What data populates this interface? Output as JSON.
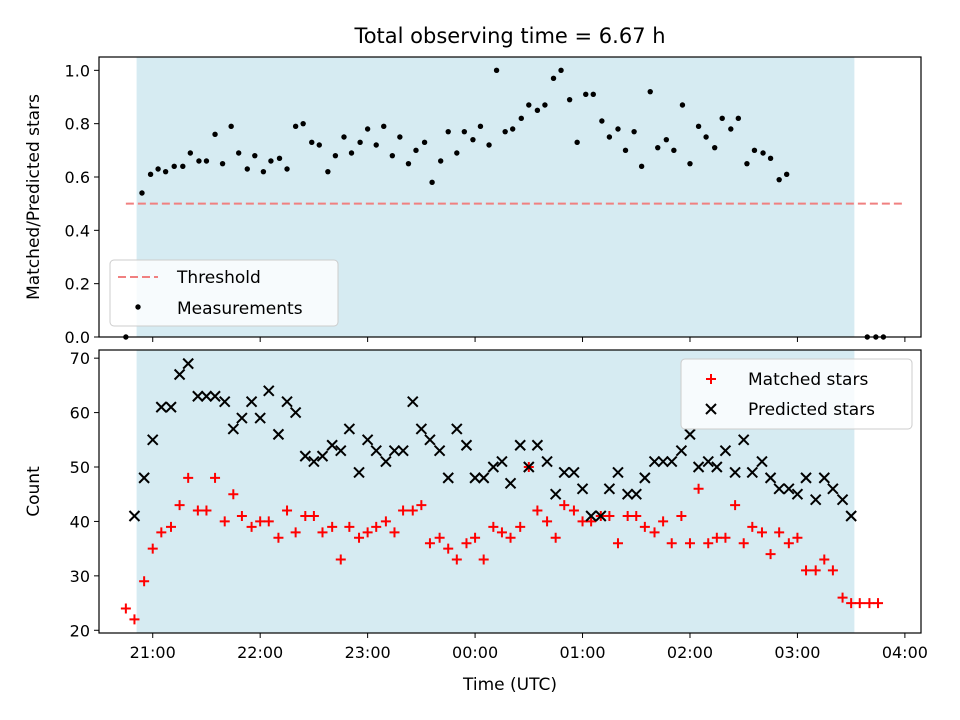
{
  "figure": {
    "title": "Total observing time = 6.67 h",
    "xlabel": "Time (UTC)",
    "xticks": [
      "21:00",
      "22:00",
      "23:00",
      "00:00",
      "01:00",
      "02:00",
      "03:00",
      "04:00"
    ],
    "xtick_hours": [
      21,
      22,
      23,
      24,
      25,
      26,
      27,
      28
    ],
    "x_range_hours": [
      20.5,
      28.15
    ],
    "shade_range_hours": [
      20.85,
      27.53
    ]
  },
  "chart_data": [
    {
      "type": "scatter",
      "ylabel": "Matched/Predicted stars",
      "ylim": [
        0,
        1.05
      ],
      "yticks": [
        0.0,
        0.2,
        0.4,
        0.6,
        0.8,
        1.0
      ],
      "ytick_labels": [
        "0.0",
        "0.2",
        "0.4",
        "0.6",
        "0.8",
        "1.0"
      ],
      "legend": {
        "position": "lower-left",
        "entries": [
          "Threshold",
          "Measurements"
        ]
      },
      "threshold": {
        "name": "Threshold",
        "value": 0.5,
        "x": [
          20.75,
          28.0
        ],
        "color": "#f08080"
      },
      "series": [
        {
          "name": "Measurements",
          "color": "#000000",
          "points": [
            [
              20.75,
              0.0
            ],
            [
              20.9,
              0.54
            ],
            [
              20.98,
              0.61
            ],
            [
              21.05,
              0.63
            ],
            [
              21.12,
              0.62
            ],
            [
              21.2,
              0.64
            ],
            [
              21.28,
              0.64
            ],
            [
              21.35,
              0.69
            ],
            [
              21.43,
              0.66
            ],
            [
              21.5,
              0.66
            ],
            [
              21.58,
              0.76
            ],
            [
              21.65,
              0.65
            ],
            [
              21.73,
              0.79
            ],
            [
              21.8,
              0.69
            ],
            [
              21.88,
              0.63
            ],
            [
              21.95,
              0.68
            ],
            [
              22.03,
              0.62
            ],
            [
              22.1,
              0.66
            ],
            [
              22.18,
              0.67
            ],
            [
              22.25,
              0.63
            ],
            [
              22.33,
              0.79
            ],
            [
              22.4,
              0.8
            ],
            [
              22.48,
              0.73
            ],
            [
              22.55,
              0.72
            ],
            [
              22.63,
              0.62
            ],
            [
              22.7,
              0.68
            ],
            [
              22.78,
              0.75
            ],
            [
              22.85,
              0.69
            ],
            [
              22.93,
              0.73
            ],
            [
              23.0,
              0.78
            ],
            [
              23.08,
              0.72
            ],
            [
              23.15,
              0.79
            ],
            [
              23.23,
              0.68
            ],
            [
              23.3,
              0.75
            ],
            [
              23.38,
              0.65
            ],
            [
              23.45,
              0.7
            ],
            [
              23.53,
              0.73
            ],
            [
              23.6,
              0.58
            ],
            [
              23.68,
              0.66
            ],
            [
              23.75,
              0.77
            ],
            [
              23.83,
              0.69
            ],
            [
              23.9,
              0.77
            ],
            [
              23.98,
              0.74
            ],
            [
              24.05,
              0.79
            ],
            [
              24.13,
              0.72
            ],
            [
              24.2,
              1.0
            ],
            [
              24.28,
              0.77
            ],
            [
              24.35,
              0.78
            ],
            [
              24.43,
              0.82
            ],
            [
              24.5,
              0.87
            ],
            [
              24.58,
              0.85
            ],
            [
              24.65,
              0.87
            ],
            [
              24.73,
              0.97
            ],
            [
              24.8,
              1.0
            ],
            [
              24.88,
              0.89
            ],
            [
              24.95,
              0.73
            ],
            [
              25.03,
              0.91
            ],
            [
              25.1,
              0.91
            ],
            [
              25.18,
              0.81
            ],
            [
              25.25,
              0.75
            ],
            [
              25.33,
              0.78
            ],
            [
              25.4,
              0.7
            ],
            [
              25.48,
              0.77
            ],
            [
              25.55,
              0.64
            ],
            [
              25.63,
              0.92
            ],
            [
              25.7,
              0.71
            ],
            [
              25.78,
              0.74
            ],
            [
              25.85,
              0.7
            ],
            [
              25.93,
              0.87
            ],
            [
              26.0,
              0.65
            ],
            [
              26.08,
              0.79
            ],
            [
              26.15,
              0.75
            ],
            [
              26.23,
              0.71
            ],
            [
              26.3,
              0.82
            ],
            [
              26.38,
              0.78
            ],
            [
              26.45,
              0.82
            ],
            [
              26.53,
              0.65
            ],
            [
              26.6,
              0.7
            ],
            [
              26.68,
              0.69
            ],
            [
              26.75,
              0.67
            ],
            [
              26.83,
              0.59
            ],
            [
              26.9,
              0.61
            ],
            [
              27.65,
              0.0
            ],
            [
              27.73,
              0.0
            ],
            [
              27.8,
              0.0
            ]
          ]
        }
      ]
    },
    {
      "type": "scatter",
      "ylabel": "Count",
      "ylim": [
        19.5,
        71.5
      ],
      "yticks": [
        20,
        30,
        40,
        50,
        60,
        70
      ],
      "ytick_labels": [
        "20",
        "30",
        "40",
        "50",
        "60",
        "70"
      ],
      "legend": {
        "position": "top-right",
        "entries": [
          "Matched stars",
          "Predicted stars"
        ]
      },
      "series": [
        {
          "name": "Matched stars",
          "marker": "plus",
          "color": "#ff0000",
          "points": [
            [
              20.75,
              24
            ],
            [
              20.83,
              22
            ],
            [
              20.92,
              29
            ],
            [
              21.0,
              35
            ],
            [
              21.08,
              38
            ],
            [
              21.17,
              39
            ],
            [
              21.25,
              43
            ],
            [
              21.33,
              48
            ],
            [
              21.42,
              42
            ],
            [
              21.5,
              42
            ],
            [
              21.58,
              48
            ],
            [
              21.67,
              40
            ],
            [
              21.75,
              45
            ],
            [
              21.83,
              41
            ],
            [
              21.92,
              39
            ],
            [
              22.0,
              40
            ],
            [
              22.08,
              40
            ],
            [
              22.17,
              37
            ],
            [
              22.25,
              42
            ],
            [
              22.33,
              38
            ],
            [
              22.42,
              41
            ],
            [
              22.5,
              41
            ],
            [
              22.58,
              38
            ],
            [
              22.67,
              39
            ],
            [
              22.75,
              33
            ],
            [
              22.83,
              39
            ],
            [
              22.92,
              37
            ],
            [
              23.0,
              38
            ],
            [
              23.08,
              39
            ],
            [
              23.17,
              40
            ],
            [
              23.25,
              38
            ],
            [
              23.33,
              42
            ],
            [
              23.42,
              42
            ],
            [
              23.5,
              43
            ],
            [
              23.58,
              36
            ],
            [
              23.67,
              37
            ],
            [
              23.75,
              35
            ],
            [
              23.83,
              33
            ],
            [
              23.92,
              36
            ],
            [
              24.0,
              37
            ],
            [
              24.08,
              33
            ],
            [
              24.17,
              39
            ],
            [
              24.25,
              38
            ],
            [
              24.33,
              37
            ],
            [
              24.42,
              39
            ],
            [
              24.5,
              50
            ],
            [
              24.58,
              42
            ],
            [
              24.67,
              40
            ],
            [
              24.75,
              37
            ],
            [
              24.83,
              43
            ],
            [
              24.92,
              42
            ],
            [
              25.0,
              40
            ],
            [
              25.08,
              40
            ],
            [
              25.17,
              41
            ],
            [
              25.25,
              41
            ],
            [
              25.33,
              36
            ],
            [
              25.42,
              41
            ],
            [
              25.5,
              41
            ],
            [
              25.58,
              39
            ],
            [
              25.67,
              38
            ],
            [
              25.75,
              40
            ],
            [
              25.83,
              36
            ],
            [
              25.92,
              41
            ],
            [
              26.0,
              36
            ],
            [
              26.08,
              46
            ],
            [
              26.17,
              36
            ],
            [
              26.25,
              37
            ],
            [
              26.33,
              37
            ],
            [
              26.42,
              43
            ],
            [
              26.5,
              36
            ],
            [
              26.58,
              39
            ],
            [
              26.67,
              38
            ],
            [
              26.75,
              34
            ],
            [
              26.83,
              38
            ],
            [
              26.92,
              36
            ],
            [
              27.0,
              37
            ],
            [
              27.08,
              31
            ],
            [
              27.17,
              31
            ],
            [
              27.25,
              33
            ],
            [
              27.33,
              31
            ],
            [
              27.42,
              26
            ],
            [
              27.5,
              25
            ],
            [
              27.58,
              25
            ],
            [
              27.67,
              25
            ],
            [
              27.75,
              25
            ]
          ]
        },
        {
          "name": "Predicted stars",
          "marker": "x",
          "color": "#000000",
          "points": [
            [
              20.83,
              41
            ],
            [
              20.92,
              48
            ],
            [
              21.0,
              55
            ],
            [
              21.08,
              61
            ],
            [
              21.17,
              61
            ],
            [
              21.25,
              67
            ],
            [
              21.33,
              69
            ],
            [
              21.42,
              63
            ],
            [
              21.5,
              63
            ],
            [
              21.58,
              63
            ],
            [
              21.67,
              62
            ],
            [
              21.75,
              57
            ],
            [
              21.83,
              59
            ],
            [
              21.92,
              62
            ],
            [
              22.0,
              59
            ],
            [
              22.08,
              64
            ],
            [
              22.17,
              56
            ],
            [
              22.25,
              62
            ],
            [
              22.33,
              60
            ],
            [
              22.42,
              52
            ],
            [
              22.5,
              51
            ],
            [
              22.58,
              52
            ],
            [
              22.67,
              54
            ],
            [
              22.75,
              53
            ],
            [
              22.83,
              57
            ],
            [
              22.92,
              49
            ],
            [
              23.0,
              55
            ],
            [
              23.08,
              53
            ],
            [
              23.17,
              51
            ],
            [
              23.25,
              53
            ],
            [
              23.33,
              53
            ],
            [
              23.42,
              62
            ],
            [
              23.5,
              57
            ],
            [
              23.58,
              55
            ],
            [
              23.67,
              53
            ],
            [
              23.75,
              48
            ],
            [
              23.83,
              57
            ],
            [
              23.92,
              54
            ],
            [
              24.0,
              48
            ],
            [
              24.08,
              48
            ],
            [
              24.17,
              50
            ],
            [
              24.25,
              51
            ],
            [
              24.33,
              47
            ],
            [
              24.42,
              54
            ],
            [
              24.5,
              50
            ],
            [
              24.58,
              54
            ],
            [
              24.67,
              51
            ],
            [
              24.75,
              45
            ],
            [
              24.83,
              49
            ],
            [
              24.92,
              49
            ],
            [
              25.0,
              46
            ],
            [
              25.08,
              41
            ],
            [
              25.17,
              41
            ],
            [
              25.25,
              46
            ],
            [
              25.33,
              49
            ],
            [
              25.42,
              45
            ],
            [
              25.5,
              45
            ],
            [
              25.58,
              48
            ],
            [
              25.67,
              51
            ],
            [
              25.75,
              51
            ],
            [
              25.83,
              51
            ],
            [
              25.92,
              53
            ],
            [
              26.0,
              56
            ],
            [
              26.08,
              50
            ],
            [
              26.17,
              51
            ],
            [
              26.25,
              50
            ],
            [
              26.33,
              53
            ],
            [
              26.42,
              49
            ],
            [
              26.5,
              55
            ],
            [
              26.58,
              49
            ],
            [
              26.67,
              51
            ],
            [
              26.75,
              48
            ],
            [
              26.83,
              46
            ],
            [
              26.92,
              46
            ],
            [
              27.0,
              45
            ],
            [
              27.08,
              48
            ],
            [
              27.17,
              44
            ],
            [
              27.25,
              48
            ],
            [
              27.33,
              46
            ],
            [
              27.42,
              44
            ],
            [
              27.5,
              41
            ]
          ]
        }
      ]
    }
  ]
}
